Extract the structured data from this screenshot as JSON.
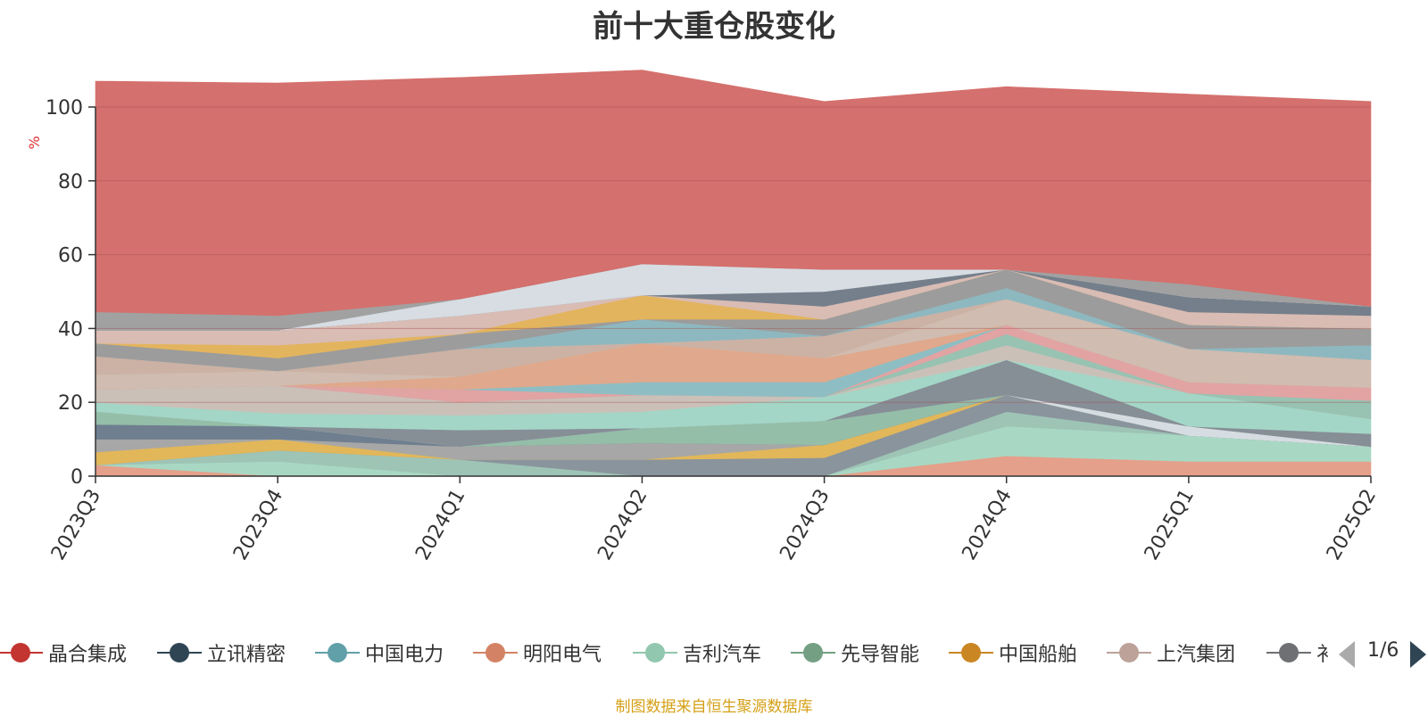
{
  "chart_data": {
    "type": "area",
    "title": "前十大重仓股变化",
    "ylabel": "%",
    "ylim": [
      0,
      100
    ],
    "yticks": [
      0,
      20,
      40,
      60,
      80,
      100
    ],
    "categories": [
      "2023Q3",
      "2023Q4",
      "2024Q1",
      "2024Q2",
      "2024Q3",
      "2024Q4",
      "2025Q1",
      "2025Q2"
    ],
    "grid": true,
    "stacked": true,
    "series": [
      {
        "values": [
          3,
          0,
          0,
          0,
          0,
          5.5,
          4,
          4
        ],
        "color": "#e4a08a"
      },
      {
        "values": [
          0,
          4,
          0,
          0,
          0,
          8,
          7,
          4
        ],
        "color": "#a8d8c4"
      },
      {
        "values": [
          0,
          3,
          4.5,
          0,
          0,
          4,
          0,
          0
        ],
        "color": "#9ec4b6"
      },
      {
        "values": [
          0,
          0,
          0,
          4.5,
          5,
          4.5,
          0,
          0
        ],
        "color": "#8a949c"
      },
      {
        "values": [
          3.5,
          3,
          0,
          0,
          3.5,
          0,
          0,
          0
        ],
        "color": "#e2b75a"
      },
      {
        "values": [
          3.5,
          0,
          3.5,
          4.5,
          0,
          0,
          0,
          0
        ],
        "color": "#a7a7a7"
      },
      {
        "values": [
          4,
          3.5,
          0,
          0,
          0,
          0,
          0,
          0
        ],
        "color": "#6f7f8f"
      },
      {
        "values": [
          3.5,
          0,
          0,
          4,
          6.5,
          0,
          0,
          0
        ],
        "color": "#94bea8"
      },
      {
        "values": [
          0,
          0,
          0,
          0,
          0,
          0,
          2.5,
          0
        ],
        "color": "#d6dde2"
      },
      {
        "values": [
          0,
          0,
          4.5,
          0,
          0,
          9.5,
          0,
          3.5
        ],
        "color": "#868e96"
      },
      {
        "values": [
          2.5,
          3.5,
          4,
          4.5,
          6.5,
          0,
          9,
          4
        ],
        "color": "#a3d6c6"
      },
      {
        "values": [
          3.5,
          7.5,
          3.5,
          4.5,
          0,
          4,
          0,
          0
        ],
        "color": "#cbc0b8"
      },
      {
        "values": [
          0,
          0,
          0,
          0,
          0,
          3,
          0,
          5
        ],
        "color": "#98c2b2"
      },
      {
        "values": [
          0,
          0,
          3.5,
          0,
          0,
          2.5,
          3,
          3.5
        ],
        "color": "#e2a3a3"
      },
      {
        "values": [
          0,
          0,
          0,
          3.5,
          4,
          0,
          0,
          0
        ],
        "color": "#8ebec4"
      },
      {
        "values": [
          0,
          0,
          3.5,
          10.5,
          6.5,
          0,
          0,
          0
        ],
        "color": "#e0a88c"
      },
      {
        "values": [
          4,
          4,
          0,
          0,
          0,
          7,
          9,
          7.5
        ],
        "color": "#d0bcb0"
      },
      {
        "values": [
          5,
          0,
          7.5,
          0,
          6,
          0,
          0,
          0
        ],
        "color": "#ccb2a4"
      },
      {
        "values": [
          0,
          0,
          0,
          6.5,
          0,
          3,
          0,
          4
        ],
        "color": "#8eb8c0"
      },
      {
        "values": [
          3.5,
          3.5,
          4,
          0,
          4.5,
          5,
          6.5,
          4.5
        ],
        "color": "#9c9c9c"
      },
      {
        "values": [
          0,
          3.5,
          0,
          6.5,
          0,
          0,
          0,
          0
        ],
        "color": "#e3b45e"
      },
      {
        "values": [
          3.5,
          4,
          5,
          0,
          3.5,
          0,
          3.5,
          3.5
        ],
        "color": "#d9bcb4"
      },
      {
        "values": [
          0,
          0,
          0,
          0,
          4,
          0,
          4,
          2.5
        ],
        "color": "#747f8b"
      },
      {
        "values": [
          0,
          0,
          4.5,
          8.5,
          6,
          0,
          0,
          0
        ],
        "color": "#d7dde3"
      },
      {
        "values": [
          5,
          4,
          0,
          0,
          0,
          0,
          3.5,
          0
        ],
        "color": "#a1a1a1"
      },
      {
        "values": [
          62.5,
          63,
          60,
          52.5,
          45.5,
          49.5,
          51.5,
          55.5
        ],
        "color": "#d4706d"
      }
    ],
    "legend": [
      {
        "name": "晶合集成",
        "color": "#c23531"
      },
      {
        "name": "立讯精密",
        "color": "#2f4554"
      },
      {
        "name": "中国电力",
        "color": "#61a0a8"
      },
      {
        "name": "明阳电气",
        "color": "#d48265"
      },
      {
        "name": "吉利汽车",
        "color": "#91c7ae"
      },
      {
        "name": "先导智能",
        "color": "#749f83"
      },
      {
        "name": "中国船舶",
        "color": "#ca8622"
      },
      {
        "name": "上汽集团",
        "color": "#bda29a"
      },
      {
        "name": "衤",
        "color": "#6e7074"
      }
    ],
    "legend_position": "bottom",
    "pager": "1/6",
    "source": "制图数据来自恒生聚源数据库"
  }
}
